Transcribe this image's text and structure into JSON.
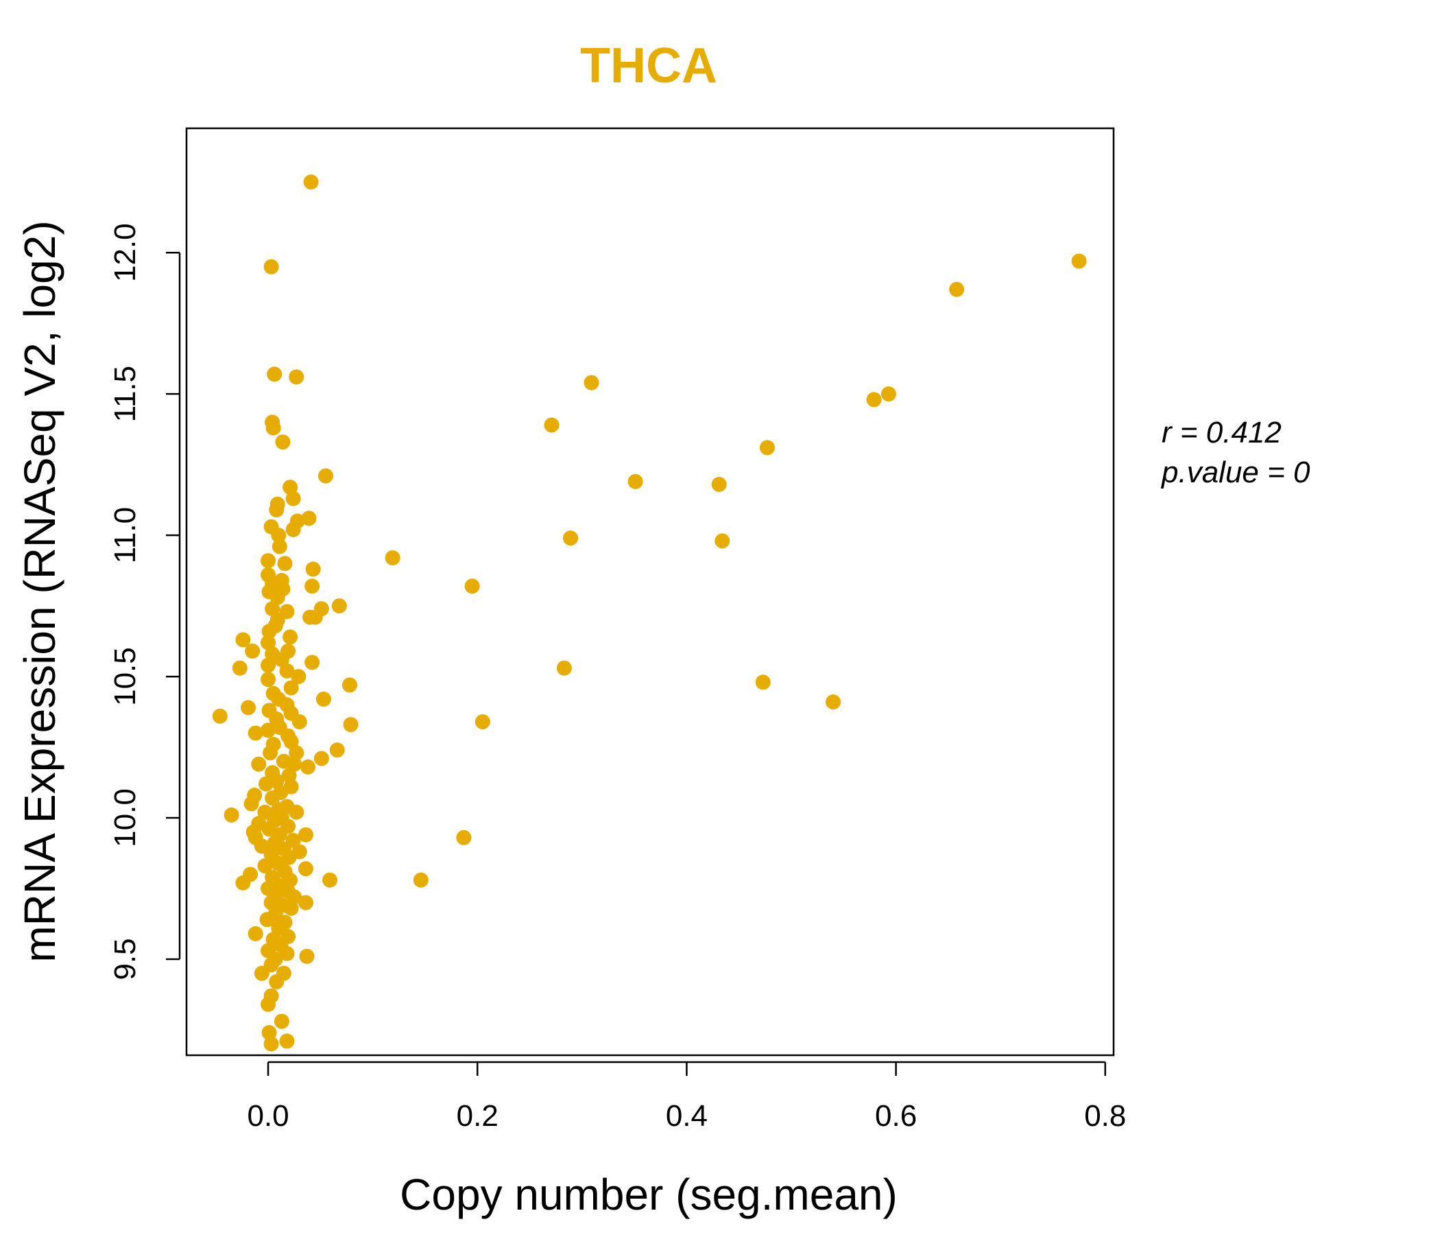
{
  "chart_data": {
    "type": "scatter",
    "title": "THCA",
    "xlabel": "Copy number (seg.mean)",
    "ylabel": "mRNA Expression (RNASeq V2, log2)",
    "xlim": [
      -0.078,
      0.808
    ],
    "ylim": [
      9.16,
      12.44
    ],
    "xticks": [
      0.0,
      0.2,
      0.4,
      0.6,
      0.8
    ],
    "xtick_labels": [
      "0.0",
      "0.2",
      "0.4",
      "0.6",
      "0.8"
    ],
    "yticks": [
      9.5,
      10.0,
      10.5,
      11.0,
      11.5,
      12.0
    ],
    "ytick_labels": [
      "9.5",
      "10.0",
      "10.5",
      "11.0",
      "11.5",
      "12.0"
    ],
    "grid": false,
    "point_color": "#E6AC00",
    "title_color": "#E6AC00",
    "annotations": {
      "r_label": "r = 0.412",
      "p_label": "p.value = 0"
    },
    "series": [
      {
        "points": [
          [
            0.041,
            12.25
          ],
          [
            0.003,
            11.95
          ],
          [
            0.775,
            11.97
          ],
          [
            0.658,
            11.87
          ],
          [
            0.006,
            11.57
          ],
          [
            0.027,
            11.56
          ],
          [
            0.309,
            11.54
          ],
          [
            0.593,
            11.5
          ],
          [
            0.579,
            11.48
          ],
          [
            0.004,
            11.4
          ],
          [
            0.005,
            11.38
          ],
          [
            0.271,
            11.39
          ],
          [
            0.014,
            11.33
          ],
          [
            0.477,
            11.31
          ],
          [
            0.055,
            11.21
          ],
          [
            0.351,
            11.19
          ],
          [
            0.431,
            11.18
          ],
          [
            0.021,
            11.17
          ],
          [
            0.024,
            11.13
          ],
          [
            0.009,
            11.11
          ],
          [
            0.008,
            11.09
          ],
          [
            0.039,
            11.06
          ],
          [
            0.028,
            11.05
          ],
          [
            0.003,
            11.03
          ],
          [
            0.024,
            11.02
          ],
          [
            0.01,
            11.0
          ],
          [
            0.289,
            10.99
          ],
          [
            0.434,
            10.98
          ],
          [
            0.011,
            10.96
          ],
          [
            0.119,
            10.92
          ],
          [
            0.0,
            10.91
          ],
          [
            0.016,
            10.9
          ],
          [
            0.043,
            10.88
          ],
          [
            0.0,
            10.86
          ],
          [
            0.013,
            10.84
          ],
          [
            0.004,
            10.83
          ],
          [
            0.042,
            10.82
          ],
          [
            0.195,
            10.82
          ],
          [
            0.014,
            10.81
          ],
          [
            0.001,
            10.8
          ],
          [
            0.009,
            10.78
          ],
          [
            0.068,
            10.75
          ],
          [
            0.051,
            10.74
          ],
          [
            0.004,
            10.74
          ],
          [
            0.018,
            10.73
          ],
          [
            0.04,
            10.71
          ],
          [
            0.009,
            10.7
          ],
          [
            0.045,
            10.71
          ],
          [
            0.007,
            10.68
          ],
          [
            0.001,
            10.66
          ],
          [
            0.021,
            10.64
          ],
          [
            -0.024,
            10.63
          ],
          [
            0.0,
            10.62
          ],
          [
            0.019,
            10.59
          ],
          [
            -0.015,
            10.59
          ],
          [
            0.004,
            10.58
          ],
          [
            0.013,
            10.56
          ],
          [
            0.042,
            10.55
          ],
          [
            0.0,
            10.54
          ],
          [
            -0.027,
            10.53
          ],
          [
            0.283,
            10.53
          ],
          [
            0.018,
            10.52
          ],
          [
            0.029,
            10.5
          ],
          [
            0.0,
            10.49
          ],
          [
            0.078,
            10.47
          ],
          [
            0.473,
            10.48
          ],
          [
            0.022,
            10.46
          ],
          [
            0.005,
            10.44
          ],
          [
            0.053,
            10.42
          ],
          [
            0.01,
            10.42
          ],
          [
            0.54,
            10.41
          ],
          [
            0.018,
            10.4
          ],
          [
            -0.019,
            10.39
          ],
          [
            0.001,
            10.38
          ],
          [
            0.022,
            10.37
          ],
          [
            -0.046,
            10.36
          ],
          [
            0.008,
            10.35
          ],
          [
            0.03,
            10.34
          ],
          [
            0.205,
            10.34
          ],
          [
            0.079,
            10.33
          ],
          [
            0.011,
            10.32
          ],
          [
            0.0,
            10.31
          ],
          [
            0.019,
            10.29
          ],
          [
            -0.012,
            10.3
          ],
          [
            0.022,
            10.27
          ],
          [
            0.005,
            10.26
          ],
          [
            0.027,
            10.23
          ],
          [
            0.066,
            10.24
          ],
          [
            0.002,
            10.23
          ],
          [
            0.051,
            10.21
          ],
          [
            0.015,
            10.2
          ],
          [
            -0.009,
            10.19
          ],
          [
            0.025,
            10.19
          ],
          [
            0.038,
            10.18
          ],
          [
            0.004,
            10.16
          ],
          [
            0.02,
            10.15
          ],
          [
            0.008,
            10.13
          ],
          [
            -0.002,
            10.12
          ],
          [
            0.022,
            10.11
          ],
          [
            0.012,
            10.09
          ],
          [
            -0.013,
            10.08
          ],
          [
            0.004,
            10.07
          ],
          [
            -0.016,
            10.05
          ],
          [
            0.018,
            10.04
          ],
          [
            0.01,
            10.03
          ],
          [
            -0.003,
            10.02
          ],
          [
            0.027,
            10.02
          ],
          [
            -0.035,
            10.01
          ],
          [
            0.013,
            10.0
          ],
          [
            0.006,
            9.99
          ],
          [
            -0.009,
            9.98
          ],
          [
            0.019,
            9.97
          ],
          [
            0.001,
            9.96
          ],
          [
            -0.014,
            9.95
          ],
          [
            0.036,
            9.94
          ],
          [
            0.011,
            9.94
          ],
          [
            -0.012,
            9.93
          ],
          [
            0.187,
            9.93
          ],
          [
            0.024,
            9.92
          ],
          [
            0.006,
            9.91
          ],
          [
            -0.006,
            9.9
          ],
          [
            0.015,
            9.89
          ],
          [
            0.03,
            9.88
          ],
          [
            0.003,
            9.87
          ],
          [
            0.02,
            9.86
          ],
          [
            0.009,
            9.84
          ],
          [
            -0.003,
            9.83
          ],
          [
            0.036,
            9.82
          ],
          [
            0.016,
            9.81
          ],
          [
            -0.017,
            9.8
          ],
          [
            0.004,
            9.79
          ],
          [
            0.021,
            9.78
          ],
          [
            0.059,
            9.78
          ],
          [
            0.146,
            9.78
          ],
          [
            -0.024,
            9.77
          ],
          [
            0.011,
            9.76
          ],
          [
            0.0,
            9.75
          ],
          [
            0.019,
            9.74
          ],
          [
            0.008,
            9.73
          ],
          [
            0.025,
            9.72
          ],
          [
            0.036,
            9.7
          ],
          [
            0.003,
            9.7
          ],
          [
            0.014,
            9.69
          ],
          [
            0.022,
            9.68
          ],
          [
            0.007,
            9.66
          ],
          [
            -0.001,
            9.64
          ],
          [
            0.016,
            9.63
          ],
          [
            0.01,
            9.61
          ],
          [
            -0.012,
            9.59
          ],
          [
            0.019,
            9.58
          ],
          [
            0.005,
            9.57
          ],
          [
            0.012,
            9.55
          ],
          [
            0.0,
            9.53
          ],
          [
            0.018,
            9.52
          ],
          [
            0.037,
            9.51
          ],
          [
            0.007,
            9.5
          ],
          [
            0.003,
            9.48
          ],
          [
            -0.006,
            9.45
          ],
          [
            0.015,
            9.45
          ],
          [
            0.008,
            9.42
          ],
          [
            0.003,
            9.37
          ],
          [
            0.0,
            9.34
          ],
          [
            0.013,
            9.28
          ],
          [
            0.001,
            9.24
          ],
          [
            0.003,
            9.2
          ],
          [
            0.018,
            9.21
          ]
        ]
      }
    ]
  }
}
